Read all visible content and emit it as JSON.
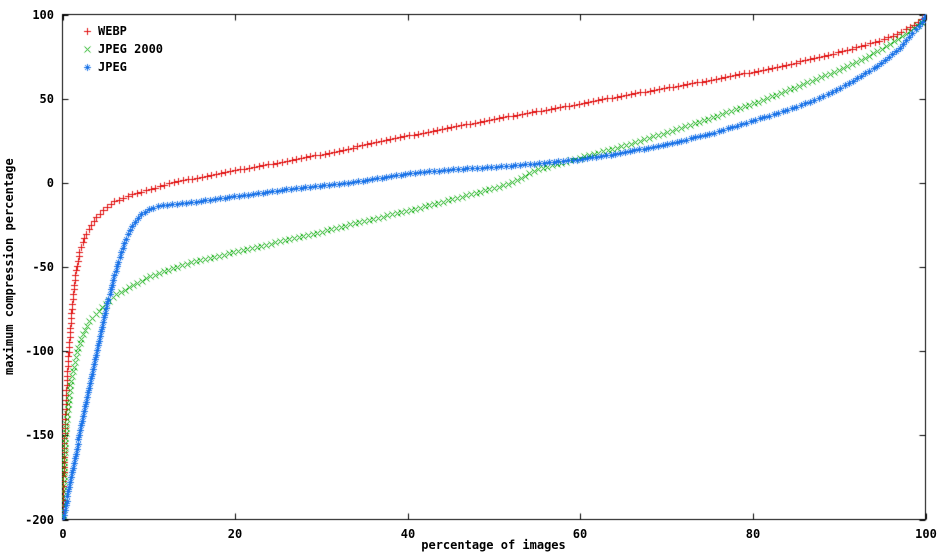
{
  "chart_data": {
    "type": "scatter",
    "title": "",
    "xlabel": "percentage of images",
    "ylabel": "maximum compression percentage",
    "xlim": [
      0,
      100
    ],
    "ylim": [
      -200,
      100
    ],
    "xticks": [
      0,
      20,
      40,
      60,
      80,
      100
    ],
    "yticks": [
      -200,
      -150,
      -100,
      -50,
      0,
      50,
      100
    ],
    "grid": false,
    "legend_position": "top-left-inside",
    "background_color": "#ffffff",
    "axis_color": "#000000",
    "series": [
      {
        "name": "WEBP",
        "marker": "plus",
        "color": "#e01010",
        "points": [
          [
            0,
            -200
          ],
          [
            0.1,
            -175
          ],
          [
            0.2,
            -155
          ],
          [
            0.3,
            -140
          ],
          [
            0.5,
            -118
          ],
          [
            0.7,
            -100
          ],
          [
            1,
            -80
          ],
          [
            1.3,
            -62
          ],
          [
            1.6,
            -50
          ],
          [
            2,
            -40
          ],
          [
            2.5,
            -33
          ],
          [
            3,
            -28
          ],
          [
            4,
            -20
          ],
          [
            5,
            -15
          ],
          [
            6,
            -11
          ],
          [
            8,
            -7
          ],
          [
            10,
            -4
          ],
          [
            12.5,
            0
          ],
          [
            15,
            2.5
          ],
          [
            20,
            7.5
          ],
          [
            25,
            12
          ],
          [
            30,
            17
          ],
          [
            35,
            22.5
          ],
          [
            40,
            28
          ],
          [
            45,
            33
          ],
          [
            50,
            38
          ],
          [
            55,
            42.5
          ],
          [
            60,
            47
          ],
          [
            65,
            52
          ],
          [
            70,
            56.5
          ],
          [
            75,
            61
          ],
          [
            80,
            66
          ],
          [
            85,
            71.5
          ],
          [
            88,
            75
          ],
          [
            91,
            79
          ],
          [
            93,
            82
          ],
          [
            95,
            85
          ],
          [
            96.5,
            88
          ],
          [
            98,
            92
          ],
          [
            99,
            95
          ],
          [
            99.5,
            97
          ],
          [
            100,
            100
          ]
        ]
      },
      {
        "name": "JPEG 2000",
        "marker": "cross",
        "color": "#00a800",
        "points": [
          [
            0,
            -200
          ],
          [
            0.15,
            -172
          ],
          [
            0.3,
            -155
          ],
          [
            0.5,
            -140
          ],
          [
            0.8,
            -125
          ],
          [
            1,
            -117
          ],
          [
            1.5,
            -104
          ],
          [
            2,
            -95
          ],
          [
            2.5,
            -88
          ],
          [
            3,
            -83
          ],
          [
            4,
            -77
          ],
          [
            5,
            -72
          ],
          [
            6,
            -67
          ],
          [
            8,
            -61
          ],
          [
            10,
            -56
          ],
          [
            12,
            -52
          ],
          [
            15,
            -47
          ],
          [
            18,
            -43.5
          ],
          [
            20,
            -41
          ],
          [
            25,
            -35
          ],
          [
            30,
            -29
          ],
          [
            35,
            -22.5
          ],
          [
            40,
            -16.5
          ],
          [
            45,
            -10
          ],
          [
            50,
            -3
          ],
          [
            52,
            0
          ],
          [
            55,
            8
          ],
          [
            60,
            15
          ],
          [
            65,
            22
          ],
          [
            70,
            30
          ],
          [
            75,
            38.5
          ],
          [
            80,
            47
          ],
          [
            85,
            57
          ],
          [
            90,
            67
          ],
          [
            93,
            74
          ],
          [
            95,
            80
          ],
          [
            97,
            86
          ],
          [
            98.5,
            91
          ],
          [
            99.5,
            96
          ],
          [
            100,
            100
          ]
        ]
      },
      {
        "name": "JPEG",
        "marker": "asterisk",
        "color": "#1a73e8",
        "points": [
          [
            0,
            -200
          ],
          [
            0.5,
            -188
          ],
          [
            1,
            -175
          ],
          [
            1.5,
            -162
          ],
          [
            2,
            -148
          ],
          [
            2.5,
            -135
          ],
          [
            3,
            -122
          ],
          [
            3.5,
            -110
          ],
          [
            4,
            -98
          ],
          [
            4.5,
            -87
          ],
          [
            5,
            -76
          ],
          [
            5.5,
            -65
          ],
          [
            6,
            -55
          ],
          [
            6.5,
            -46
          ],
          [
            7,
            -38
          ],
          [
            7.5,
            -31
          ],
          [
            8,
            -26
          ],
          [
            8.5,
            -22
          ],
          [
            9,
            -19
          ],
          [
            10,
            -15.5
          ],
          [
            11,
            -14
          ],
          [
            12,
            -13
          ],
          [
            15,
            -11.5
          ],
          [
            20,
            -8
          ],
          [
            25,
            -4.5
          ],
          [
            30,
            -1.5
          ],
          [
            33,
            0
          ],
          [
            35,
            1.5
          ],
          [
            40,
            5.5
          ],
          [
            45,
            8
          ],
          [
            50,
            9.5
          ],
          [
            55,
            11.5
          ],
          [
            60,
            14
          ],
          [
            65,
            18
          ],
          [
            70,
            23
          ],
          [
            75,
            29
          ],
          [
            80,
            37
          ],
          [
            85,
            45
          ],
          [
            88,
            51
          ],
          [
            90,
            56
          ],
          [
            92,
            62
          ],
          [
            94,
            68
          ],
          [
            95.5,
            74
          ],
          [
            97,
            80
          ],
          [
            98,
            86
          ],
          [
            99,
            92
          ],
          [
            99.5,
            95
          ],
          [
            100,
            100
          ]
        ]
      }
    ]
  }
}
